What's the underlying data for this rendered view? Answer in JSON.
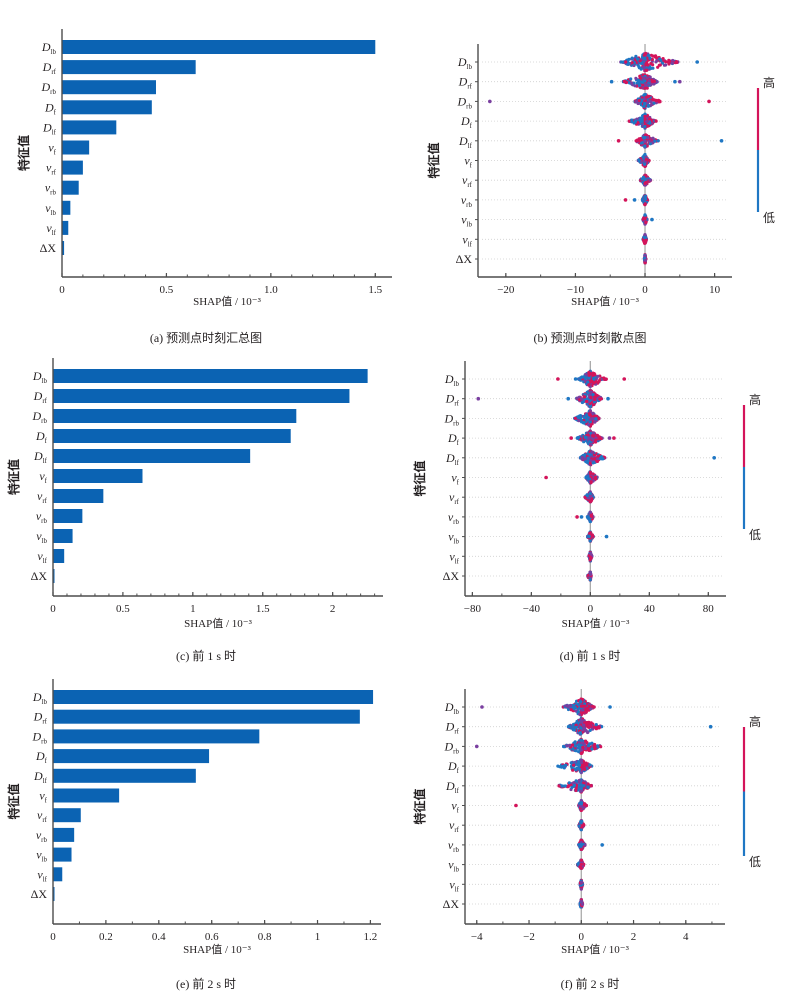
{
  "colors": {
    "bar": "#0b63b3",
    "high": "#d4145a",
    "low": "#1f77c4",
    "mid": "#7a3fa0",
    "axis": "#4d4d4d",
    "zero_line": "#aaaaaa",
    "grid_dot": "#d0d0d0"
  },
  "features": [
    {
      "base": "D",
      "sub": "lb"
    },
    {
      "base": "D",
      "sub": "rf"
    },
    {
      "base": "D",
      "sub": "rb"
    },
    {
      "base": "D",
      "sub": "f"
    },
    {
      "base": "D",
      "sub": "lf"
    },
    {
      "base": "v",
      "sub": "f"
    },
    {
      "base": "v",
      "sub": "rf"
    },
    {
      "base": "v",
      "sub": "rb"
    },
    {
      "base": "v",
      "sub": "lb"
    },
    {
      "base": "v",
      "sub": "lf"
    },
    {
      "base": "ΔX",
      "sub": ""
    }
  ],
  "chart_data": [
    {
      "id": "a",
      "type": "bar",
      "orientation": "horizontal",
      "caption": "(a)  预测点时刻汇总图",
      "xlabel": "SHAP值 / 10⁻³",
      "ylabel": "特征值",
      "categories": [
        "D_lb",
        "D_rf",
        "D_rb",
        "D_f",
        "D_lf",
        "v_f",
        "v_rf",
        "v_rb",
        "v_lb",
        "v_lf",
        "ΔX"
      ],
      "values": [
        1.5,
        0.64,
        0.45,
        0.43,
        0.26,
        0.13,
        0.1,
        0.08,
        0.04,
        0.03,
        0.01
      ],
      "xlim": [
        0,
        1.58
      ],
      "xticks": [
        0,
        0.5,
        1.0,
        1.5
      ],
      "xtick_labels": [
        "0",
        "0.5",
        "1.0",
        "1.5"
      ],
      "minor_step": 0.1,
      "grid": false
    },
    {
      "id": "b",
      "type": "scatter",
      "subtype": "beeswarm",
      "caption": "(b)  预测点时刻散点图",
      "xlabel": "SHAP值 / 10⁻³",
      "ylabel": "特征值",
      "categories": [
        "D_lb",
        "D_rf",
        "D_rb",
        "D_f",
        "D_lf",
        "v_f",
        "v_rf",
        "v_rb",
        "v_lb",
        "v_lf",
        "ΔX"
      ],
      "xlim": [
        -24,
        12.5
      ],
      "xticks": [
        -20,
        -10,
        0,
        10
      ],
      "xtick_labels": [
        "−20",
        "−10",
        "0",
        "10"
      ],
      "minor_step": 5,
      "colorbar": {
        "high_label": "高",
        "low_label": "低"
      },
      "spread": [
        {
          "low_min": -3.5,
          "high_max": 4.8,
          "width": 1.0,
          "outliers": [
            {
              "x": 7.5,
              "c": "low"
            }
          ]
        },
        {
          "low_min": -3.2,
          "high_max": 1.8,
          "width": 0.8,
          "outliers": [
            {
              "x": -4.8,
              "c": "low"
            },
            {
              "x": 4.3,
              "c": "low"
            },
            {
              "x": 5.0,
              "c": "mid"
            }
          ]
        },
        {
          "low_min": -1.5,
          "high_max": 2.3,
          "width": 0.7,
          "outliers": [
            {
              "x": -22.3,
              "c": "mid"
            },
            {
              "x": 9.2,
              "c": "high"
            }
          ]
        },
        {
          "low_min": -2.3,
          "high_max": 1.6,
          "width": 0.7,
          "outliers": []
        },
        {
          "low_min": -1.3,
          "high_max": 1.9,
          "width": 0.6,
          "outliers": [
            {
              "x": -3.8,
              "c": "high"
            },
            {
              "x": 11.0,
              "c": "low"
            }
          ]
        },
        {
          "low_min": -1.0,
          "high_max": 0.6,
          "width": 0.5,
          "outliers": []
        },
        {
          "low_min": -0.7,
          "high_max": 0.8,
          "width": 0.4,
          "outliers": []
        },
        {
          "low_min": -0.4,
          "high_max": 0.4,
          "width": 0.35,
          "outliers": [
            {
              "x": -2.8,
              "c": "high"
            },
            {
              "x": -1.5,
              "c": "low"
            }
          ]
        },
        {
          "low_min": -0.3,
          "high_max": 0.3,
          "width": 0.3,
          "outliers": [
            {
              "x": 1.0,
              "c": "low"
            }
          ]
        },
        {
          "low_min": -0.3,
          "high_max": 0.2,
          "width": 0.3,
          "outliers": []
        },
        {
          "low_min": -0.1,
          "high_max": 0.1,
          "width": 0.25,
          "outliers": []
        }
      ]
    },
    {
      "id": "c",
      "type": "bar",
      "orientation": "horizontal",
      "caption": "(c)  前 1 s 时",
      "xlabel": "SHAP值 / 10⁻³",
      "ylabel": "特征值",
      "categories": [
        "D_lb",
        "D_rf",
        "D_rb",
        "D_f",
        "D_lf",
        "v_f",
        "v_rf",
        "v_rb",
        "v_lb",
        "v_lf",
        "ΔX"
      ],
      "values": [
        2.25,
        2.12,
        1.74,
        1.7,
        1.41,
        0.64,
        0.36,
        0.21,
        0.14,
        0.08,
        0.01
      ],
      "xlim": [
        0,
        2.36
      ],
      "xticks": [
        0,
        0.5,
        1,
        1.5,
        2
      ],
      "xtick_labels": [
        "0",
        "0.5",
        "1",
        "1.5",
        "2"
      ],
      "minor_step": 0.1,
      "grid": false
    },
    {
      "id": "d",
      "type": "scatter",
      "subtype": "beeswarm",
      "caption": "(d)  前 1 s 时",
      "xlabel": "SHAP值 / 10⁻³",
      "ylabel": "特征值",
      "categories": [
        "D_lb",
        "D_rf",
        "D_rb",
        "D_f",
        "D_lf",
        "v_f",
        "v_rf",
        "v_rb",
        "v_lb",
        "v_lf",
        "ΔX"
      ],
      "xlim": [
        -85,
        92
      ],
      "xticks": [
        -80,
        -40,
        0,
        40,
        80
      ],
      "xtick_labels": [
        "−80",
        "−40",
        "0",
        "40",
        "80"
      ],
      "minor_step": 20,
      "colorbar": {
        "high_label": "高",
        "low_label": "低"
      },
      "spread": [
        {
          "low_min": -8,
          "high_max": 11,
          "width": 0.8,
          "outliers": [
            {
              "x": -22,
              "c": "high"
            },
            {
              "x": -10,
              "c": "low"
            },
            {
              "x": 23,
              "c": "high"
            }
          ]
        },
        {
          "low_min": -10,
          "high_max": 8,
          "width": 0.9,
          "outliers": [
            {
              "x": -76,
              "c": "mid"
            },
            {
              "x": -15,
              "c": "low"
            },
            {
              "x": 12,
              "c": "low"
            }
          ]
        },
        {
          "low_min": -11,
          "high_max": 6,
          "width": 0.8,
          "outliers": []
        },
        {
          "low_min": -9,
          "high_max": 8,
          "width": 0.7,
          "outliers": [
            {
              "x": -13,
              "c": "high"
            },
            {
              "x": 13,
              "c": "mid"
            },
            {
              "x": 16,
              "c": "high"
            }
          ]
        },
        {
          "low_min": -7,
          "high_max": 10,
          "width": 0.7,
          "outliers": [
            {
              "x": 84,
              "c": "low"
            }
          ]
        },
        {
          "low_min": -3,
          "high_max": 5,
          "width": 0.5,
          "outliers": [
            {
              "x": -30,
              "c": "high"
            }
          ]
        },
        {
          "low_min": -4,
          "high_max": 2,
          "width": 0.4,
          "outliers": []
        },
        {
          "low_min": -2,
          "high_max": 2,
          "width": 0.35,
          "outliers": [
            {
              "x": -9,
              "c": "high"
            },
            {
              "x": -6,
              "c": "low"
            }
          ]
        },
        {
          "low_min": -2,
          "high_max": 2,
          "width": 0.3,
          "outliers": [
            {
              "x": 11,
              "c": "low"
            }
          ]
        },
        {
          "low_min": -1,
          "high_max": 1,
          "width": 0.3,
          "outliers": []
        },
        {
          "low_min": -2,
          "high_max": 0.5,
          "width": 0.25,
          "outliers": []
        }
      ]
    },
    {
      "id": "e",
      "type": "bar",
      "orientation": "horizontal",
      "caption": "(e)  前 2 s 时",
      "xlabel": "SHAP值 / 10⁻³",
      "ylabel": "特征值",
      "categories": [
        "D_lb",
        "D_rf",
        "D_rb",
        "D_f",
        "D_lf",
        "v_f",
        "v_rf",
        "v_rb",
        "v_lb",
        "v_lf",
        "ΔX"
      ],
      "values": [
        1.21,
        1.16,
        0.78,
        0.59,
        0.54,
        0.25,
        0.105,
        0.08,
        0.07,
        0.035,
        0.005
      ],
      "xlim": [
        0,
        1.24
      ],
      "xticks": [
        0,
        0.2,
        0.4,
        0.6,
        0.8,
        1,
        1.2
      ],
      "xtick_labels": [
        "0",
        "0.2",
        "0.4",
        "0.6",
        "0.8",
        "1",
        "1.2"
      ],
      "minor_step": 0.1,
      "grid": false
    },
    {
      "id": "f",
      "type": "scatter",
      "subtype": "beeswarm",
      "caption": "(f)  前 2 s 时",
      "xlabel": "SHAP值 / 10⁻³",
      "ylabel": "特征值",
      "categories": [
        "D_lb",
        "D_rf",
        "D_rb",
        "D_f",
        "D_lf",
        "v_f",
        "v_rf",
        "v_rb",
        "v_lb",
        "v_lf",
        "ΔX"
      ],
      "xlim": [
        -4.45,
        5.5
      ],
      "xticks": [
        -4,
        -2,
        0,
        2,
        4
      ],
      "xtick_labels": [
        "−4",
        "−2",
        "0",
        "2",
        "4"
      ],
      "minor_step": 1,
      "colorbar": {
        "high_label": "高",
        "low_label": "低"
      },
      "spread": [
        {
          "low_min": -0.7,
          "high_max": 0.5,
          "width": 0.9,
          "outliers": [
            {
              "x": -3.8,
              "c": "mid"
            },
            {
              "x": 1.1,
              "c": "low"
            }
          ]
        },
        {
          "low_min": -0.5,
          "high_max": 0.8,
          "width": 0.9,
          "outliers": [
            {
              "x": 4.95,
              "c": "low"
            }
          ]
        },
        {
          "low_min": -0.7,
          "high_max": 0.8,
          "width": 0.7,
          "outliers": [
            {
              "x": -4.0,
              "c": "mid"
            }
          ]
        },
        {
          "low_min": -0.9,
          "high_max": 0.4,
          "width": 0.6,
          "outliers": []
        },
        {
          "low_min": -0.9,
          "high_max": 0.4,
          "width": 0.6,
          "outliers": []
        },
        {
          "low_min": -0.1,
          "high_max": 0.2,
          "width": 0.4,
          "outliers": [
            {
              "x": -2.5,
              "c": "high"
            }
          ]
        },
        {
          "low_min": -0.1,
          "high_max": 0.1,
          "width": 0.3,
          "outliers": []
        },
        {
          "low_min": -0.1,
          "high_max": 0.15,
          "width": 0.35,
          "outliers": [
            {
              "x": 0.8,
              "c": "low"
            }
          ]
        },
        {
          "low_min": -0.15,
          "high_max": 0.1,
          "width": 0.3,
          "outliers": []
        },
        {
          "low_min": -0.05,
          "high_max": 0.05,
          "width": 0.3,
          "outliers": []
        },
        {
          "low_min": -0.05,
          "high_max": 0.05,
          "width": 0.25,
          "outliers": []
        }
      ]
    }
  ]
}
